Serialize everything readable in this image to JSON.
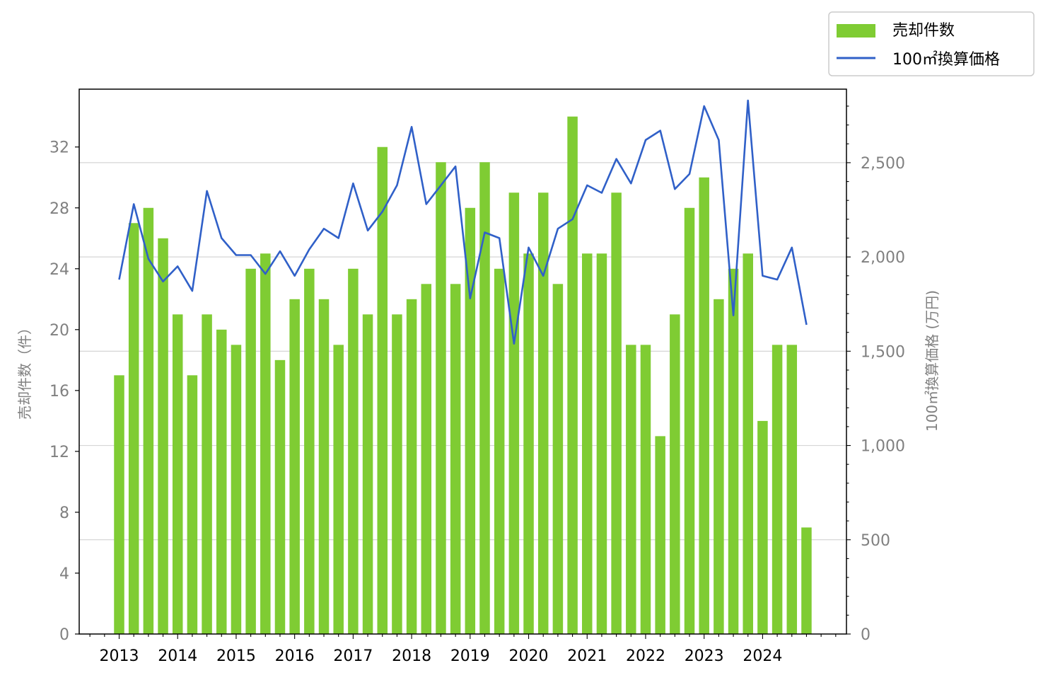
{
  "chart_data": {
    "type": "bar+line",
    "title": "",
    "x_year_labels": [
      "2013",
      "2014",
      "2015",
      "2016",
      "2017",
      "2018",
      "2019",
      "2020",
      "2021",
      "2022",
      "2023",
      "2024"
    ],
    "series": [
      {
        "name": "売却件数",
        "type": "bar",
        "axis": "left",
        "color": "#7fcc33",
        "values": [
          17,
          27,
          28,
          26,
          21,
          17,
          21,
          20,
          19,
          24,
          25,
          18,
          22,
          24,
          22,
          19,
          24,
          21,
          32,
          21,
          22,
          23,
          31,
          23,
          28,
          31,
          24,
          29,
          25,
          29,
          23,
          34,
          25,
          25,
          29,
          19,
          19,
          13,
          21,
          28,
          30,
          22,
          24,
          25,
          14,
          19,
          19,
          7
        ]
      },
      {
        "name": "100㎡換算価格",
        "type": "line",
        "axis": "right",
        "color": "#3060c8",
        "values": [
          1880,
          2280,
          1990,
          1870,
          1950,
          1820,
          2350,
          2100,
          2010,
          2010,
          1910,
          2030,
          1900,
          2040,
          2150,
          2100,
          2390,
          2140,
          2240,
          2380,
          2690,
          2280,
          2380,
          2480,
          1780,
          2130,
          2100,
          1540,
          2050,
          1900,
          2150,
          2200,
          2380,
          2340,
          2520,
          2390,
          2620,
          2670,
          2360,
          2440,
          2800,
          2620,
          1690,
          2830,
          1900,
          1880,
          2050,
          1640
        ]
      }
    ],
    "y_left": {
      "label": "売却件数（件）",
      "ticks": [
        "0",
        "4",
        "8",
        "12",
        "16",
        "20",
        "24",
        "28",
        "32"
      ],
      "range": [
        0,
        35.8
      ]
    },
    "y_right": {
      "label": "100㎡換算価格 (万円)",
      "ticks": [
        "0",
        "500",
        "1,000",
        "1,500",
        "2,000",
        "2,500"
      ],
      "range": [
        0,
        2890
      ]
    },
    "grid": "horizontal, right axis",
    "legend_position": "top-right outside"
  }
}
